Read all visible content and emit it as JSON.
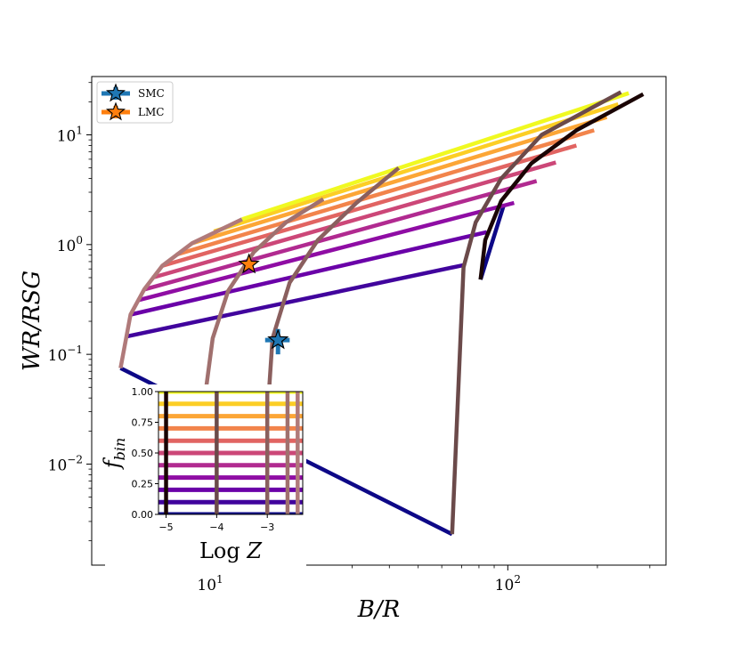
{
  "chart_data": [
    {
      "type": "line",
      "xlabel": "B/R",
      "ylabel": "WR/RSG",
      "xscale": "log",
      "yscale": "log",
      "xlim": [
        4.0,
        340
      ],
      "ylim": [
        0.0012,
        34
      ],
      "x_ticks": [
        {
          "value": 10,
          "base": "10",
          "exp": "1"
        },
        {
          "value": 100,
          "base": "10",
          "exp": "2"
        }
      ],
      "y_ticks": [
        {
          "value": 0.01,
          "base": "10",
          "exp": "−2"
        },
        {
          "value": 0.1,
          "base": "10",
          "exp": "−1"
        },
        {
          "value": 1,
          "base": "10",
          "exp": "0"
        },
        {
          "value": 10,
          "base": "10",
          "exp": "1"
        }
      ],
      "legend": {
        "position": "top-left",
        "entries": [
          {
            "label": "SMC",
            "color": "#1f77b4",
            "marker": "star"
          },
          {
            "label": "LMC",
            "color": "#ff7f0e",
            "marker": "star"
          }
        ]
      },
      "constant_fbin_lines": [
        {
          "fbin": 0.0,
          "color": "#0d0887",
          "x": [
            5.0,
            65.0
          ],
          "y": [
            0.075,
            0.0023
          ]
        },
        {
          "fbin": 0.0,
          "color": "#0d0887",
          "x": [
            81.0,
            97.0
          ],
          "y": [
            0.48,
            2.3
          ]
        },
        {
          "fbin": 0.1,
          "color": "#41049d",
          "x": [
            5.2,
            71.0
          ],
          "y": [
            0.145,
            0.65
          ]
        },
        {
          "fbin": 0.2,
          "color": "#6a00a8",
          "x": [
            5.4,
            85.0
          ],
          "y": [
            0.23,
            1.3
          ]
        },
        {
          "fbin": 0.3,
          "color": "#8f0da4",
          "x": [
            5.7,
            105.0
          ],
          "y": [
            0.31,
            2.4
          ]
        },
        {
          "fbin": 0.4,
          "color": "#b12a90",
          "x": [
            6.0,
            125.0
          ],
          "y": [
            0.39,
            3.8
          ]
        },
        {
          "fbin": 0.5,
          "color": "#cc4778",
          "x": [
            6.4,
            145.0
          ],
          "y": [
            0.5,
            5.6
          ]
        },
        {
          "fbin": 0.6,
          "color": "#e16462",
          "x": [
            6.9,
            170.0
          ],
          "y": [
            0.64,
            8.0
          ]
        },
        {
          "fbin": 0.7,
          "color": "#f2844b",
          "x": [
            7.7,
            195.0
          ],
          "y": [
            0.81,
            11.0
          ]
        },
        {
          "fbin": 0.8,
          "color": "#fca636",
          "x": [
            8.7,
            215.0
          ],
          "y": [
            1.03,
            14.5
          ]
        },
        {
          "fbin": 0.9,
          "color": "#fcce25",
          "x": [
            10.3,
            235.0
          ],
          "y": [
            1.32,
            19.0
          ]
        },
        {
          "fbin": 1.0,
          "color": "#f0f921",
          "x": [
            12.8,
            255.0
          ],
          "y": [
            1.7,
            24.0
          ]
        }
      ],
      "constant_Z_lines": [
        {
          "logZ": -5.0,
          "color": "#b07a7a",
          "x": [
            5.0,
            5.4,
            6.0,
            6.9,
            8.7,
            12.8
          ],
          "y": [
            0.075,
            0.23,
            0.39,
            0.64,
            1.03,
            1.7
          ]
        },
        {
          "logZ": -4.0,
          "color": "#a0706e",
          "x": [
            9.7,
            10.2,
            11.5,
            14.0,
            18.0,
            24.0
          ],
          "y": [
            0.05,
            0.14,
            0.38,
            0.85,
            1.6,
            2.6
          ]
        },
        {
          "logZ": -3.0,
          "color": "#8a5f5e",
          "x": [
            15.8,
            16.2,
            18.5,
            23.0,
            31.0,
            43.0
          ],
          "y": [
            0.05,
            0.14,
            0.45,
            1.1,
            2.4,
            5.0
          ]
        },
        {
          "logZ": -2.6,
          "color": "#6b4a4a",
          "x": [
            65.0,
            71.0,
            78.0,
            95.0,
            130.0,
            240.0
          ],
          "y": [
            0.0023,
            0.62,
            1.6,
            4.0,
            10.0,
            24.5
          ]
        },
        {
          "logZ": -2.4,
          "color": "#1a0505",
          "x": [
            81.0,
            84.0,
            95.0,
            120.0,
            170.0,
            285.0
          ],
          "y": [
            0.48,
            1.1,
            2.5,
            5.5,
            11.0,
            23.5
          ]
        }
      ],
      "stars": [
        {
          "label": "LMC",
          "x": 13.5,
          "y": 0.66,
          "xerr": 0,
          "yerr": 0
        },
        {
          "label": "SMC",
          "x": 16.9,
          "y": 0.135,
          "xerr": 1.6,
          "yerr": 0.035
        }
      ]
    },
    {
      "type": "heatmap",
      "panel": "inset",
      "xlabel": "Log Z",
      "ylabel": "f_bin",
      "xlim": [
        -5.15,
        -2.3
      ],
      "ylim": [
        0.0,
        1.0
      ],
      "x_ticks": [
        "−5",
        "−4",
        "−3"
      ],
      "x_tick_values": [
        -5,
        -4,
        -3
      ],
      "y_ticks": [
        "0.00",
        "0.25",
        "0.50",
        "0.75",
        "1.00"
      ],
      "y_tick_values": [
        0.0,
        0.25,
        0.5,
        0.75,
        1.0
      ],
      "horizontal_lines": [
        {
          "fbin": 0.0,
          "color": "#0d0887"
        },
        {
          "fbin": 0.1,
          "color": "#41049d"
        },
        {
          "fbin": 0.2,
          "color": "#6a00a8"
        },
        {
          "fbin": 0.3,
          "color": "#8f0da4"
        },
        {
          "fbin": 0.4,
          "color": "#b12a90"
        },
        {
          "fbin": 0.5,
          "color": "#cc4778"
        },
        {
          "fbin": 0.6,
          "color": "#e16462"
        },
        {
          "fbin": 0.7,
          "color": "#f2844b"
        },
        {
          "fbin": 0.8,
          "color": "#fca636"
        },
        {
          "fbin": 0.9,
          "color": "#fcce25"
        },
        {
          "fbin": 1.0,
          "color": "#f0f921"
        }
      ],
      "vertical_lines": [
        {
          "logZ": -5.0,
          "color": "#1a0505"
        },
        {
          "logZ": -4.0,
          "color": "#6b4a4a"
        },
        {
          "logZ": -3.0,
          "color": "#8a5f5e"
        },
        {
          "logZ": -2.6,
          "color": "#a0706e"
        },
        {
          "logZ": -2.4,
          "color": "#b07a7a"
        }
      ]
    }
  ]
}
